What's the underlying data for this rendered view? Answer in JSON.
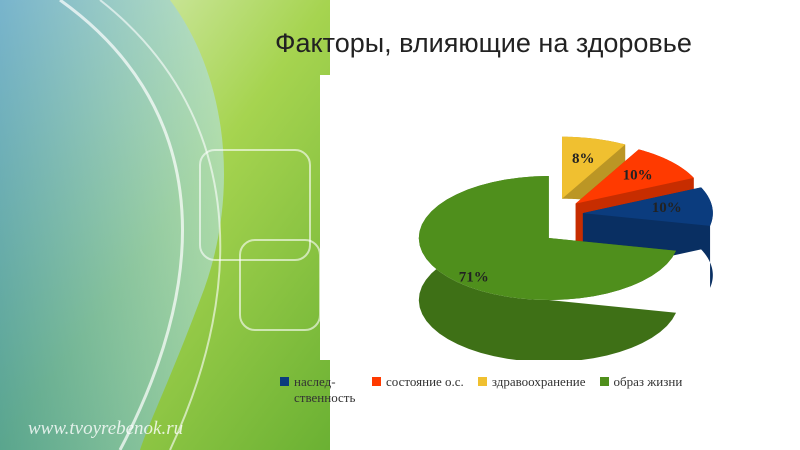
{
  "chart_data": {
    "type": "pie",
    "title": "Факторы, влияющие на здоровье",
    "categories": [
      "наслед-ственность",
      "состояние о.с.",
      "здравоохранение",
      "образ жизни"
    ],
    "values": [
      10,
      10,
      8,
      71
    ],
    "value_labels": [
      "10%",
      "10%",
      "8%",
      "71%"
    ],
    "colors": [
      "#0b3c7e",
      "#ff3a00",
      "#f0c030",
      "#4f8f1c"
    ],
    "legend": "bottom"
  },
  "watermark": "www.tvoyrebenok.ru"
}
